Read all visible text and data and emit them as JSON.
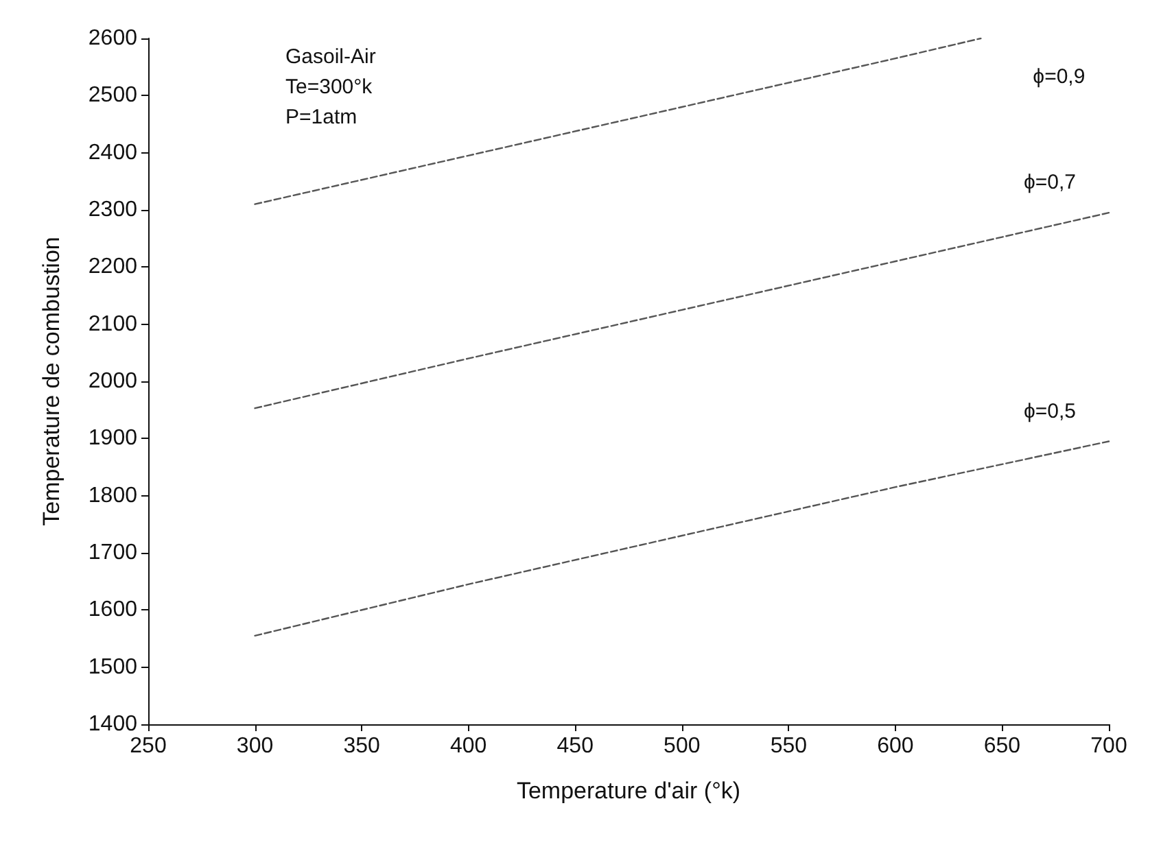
{
  "chart_data": {
    "type": "line",
    "xlabel": "Temperature d'air (°k)",
    "ylabel": "Temperature de combustion",
    "xlim": [
      250,
      700
    ],
    "xticks": [
      250,
      300,
      350,
      400,
      450,
      500,
      550,
      600,
      650,
      700
    ],
    "ylim": [
      1400,
      2600
    ],
    "yticks": [
      1400,
      1500,
      1600,
      1700,
      1800,
      1900,
      2000,
      2100,
      2200,
      2300,
      2400,
      2500,
      2600
    ],
    "grid": false,
    "legend": false,
    "marker": "none",
    "line_style": "dashed",
    "series": [
      {
        "name": "ϕ=0,9",
        "color": "#555555",
        "x": [
          300,
          400,
          500,
          600,
          640
        ],
        "values": [
          2310,
          2395,
          2480,
          2565,
          2600
        ]
      },
      {
        "name": "ϕ=0,7",
        "color": "#555555",
        "x": [
          300,
          400,
          500,
          600,
          700
        ],
        "values": [
          1953,
          2040,
          2125,
          2210,
          2295
        ]
      },
      {
        "name": "ϕ=0,5",
        "color": "#555555",
        "x": [
          300,
          400,
          500,
          600,
          700
        ],
        "values": [
          1555,
          1645,
          1730,
          1815,
          1895
        ]
      }
    ],
    "annotations": [
      "Gasoil-Air",
      "Te=300°k",
      "P=1atm"
    ]
  }
}
